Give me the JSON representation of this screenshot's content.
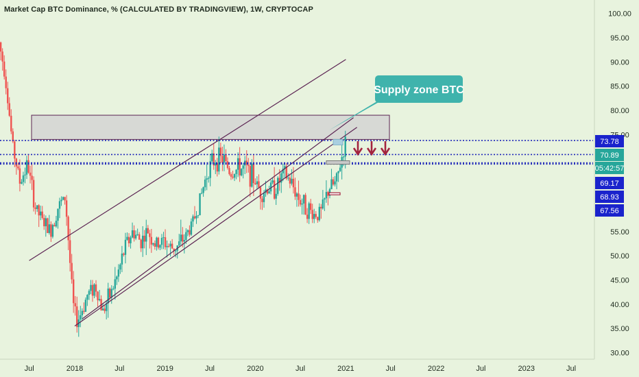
{
  "header": {
    "title": "Market Cap BTC Dominance, % (CALCULATED BY TRADINGVIEW), 1W, CRYPTOCAP"
  },
  "colors": {
    "background": "#e8f3de",
    "up_candle": "#26a69a",
    "down_candle": "#ef5350",
    "channel_line": "#5b2352",
    "dotted_level": "#1a23b8",
    "supply_zone_fill": "#d3d3d3",
    "callout_fill": "#3fb3ac",
    "arrow": "#a3243f",
    "label_teal": "#26a69a",
    "label_blue": "#1a23cc"
  },
  "chart_data": {
    "type": "candlestick",
    "title": "Market Cap BTC Dominance, % (CALCULATED BY TRADINGVIEW), 1W, CRYPTOCAP",
    "timeframe": "1W",
    "ylim": [
      30,
      100
    ],
    "y_ticks": [
      "100.00",
      "95.00",
      "90.00",
      "85.00",
      "80.00",
      "75.00",
      "55.00",
      "50.00",
      "45.00",
      "40.00",
      "35.00",
      "30.00"
    ],
    "x_ticks": [
      {
        "label": "Jul",
        "date": "2017-07-01"
      },
      {
        "label": "2018",
        "date": "2018-01-01"
      },
      {
        "label": "Jul",
        "date": "2018-07-01"
      },
      {
        "label": "2019",
        "date": "2019-01-01"
      },
      {
        "label": "Jul",
        "date": "2019-07-01"
      },
      {
        "label": "2020",
        "date": "2020-01-01"
      },
      {
        "label": "Jul",
        "date": "2020-07-01"
      },
      {
        "label": "2021",
        "date": "2021-01-01"
      },
      {
        "label": "Jul",
        "date": "2021-07-01"
      },
      {
        "label": "2022",
        "date": "2022-01-01"
      },
      {
        "label": "Jul",
        "date": "2022-07-01"
      },
      {
        "label": "2023",
        "date": "2023-01-01"
      },
      {
        "label": "Jul",
        "date": "2023-07-01"
      }
    ],
    "price_path": [
      [
        "2017-03-01",
        95.5
      ],
      [
        "2017-04-01",
        88
      ],
      [
        "2017-05-01",
        73
      ],
      [
        "2017-06-01",
        65
      ],
      [
        "2017-07-01",
        69
      ],
      [
        "2017-08-01",
        60
      ],
      [
        "2017-09-01",
        57
      ],
      [
        "2017-10-01",
        55
      ],
      [
        "2017-11-01",
        60
      ],
      [
        "2017-12-01",
        62
      ],
      [
        "2018-01-01",
        40
      ],
      [
        "2018-01-15",
        36.5
      ],
      [
        "2018-02-01",
        38
      ],
      [
        "2018-03-01",
        42
      ],
      [
        "2018-04-01",
        44
      ],
      [
        "2018-05-01",
        38.5
      ],
      [
        "2018-06-01",
        42
      ],
      [
        "2018-07-01",
        46
      ],
      [
        "2018-08-01",
        52
      ],
      [
        "2018-09-01",
        55
      ],
      [
        "2018-10-01",
        53
      ],
      [
        "2018-11-01",
        55
      ],
      [
        "2018-12-01",
        52
      ],
      [
        "2019-01-01",
        53
      ],
      [
        "2019-02-01",
        51.5
      ],
      [
        "2019-03-01",
        52
      ],
      [
        "2019-04-01",
        54
      ],
      [
        "2019-05-01",
        57
      ],
      [
        "2019-06-01",
        62
      ],
      [
        "2019-07-01",
        68
      ],
      [
        "2019-08-01",
        70
      ],
      [
        "2019-09-01",
        70
      ],
      [
        "2019-10-01",
        67
      ],
      [
        "2019-11-01",
        68
      ],
      [
        "2019-12-01",
        68
      ],
      [
        "2020-01-01",
        66
      ],
      [
        "2020-02-01",
        63
      ],
      [
        "2020-03-01",
        64
      ],
      [
        "2020-04-01",
        64
      ],
      [
        "2020-05-01",
        67
      ],
      [
        "2020-06-01",
        65
      ],
      [
        "2020-07-01",
        62
      ],
      [
        "2020-08-01",
        60
      ],
      [
        "2020-09-01",
        58.5
      ],
      [
        "2020-10-01",
        59
      ],
      [
        "2020-11-01",
        64
      ],
      [
        "2020-12-01",
        65
      ],
      [
        "2020-12-25",
        70.9
      ],
      [
        "2021-01-05",
        73
      ]
    ],
    "channel_lines": [
      {
        "from": [
          "2017-07-01",
          49
        ],
        "to": [
          "2021-01-01",
          90.5
        ]
      },
      {
        "from": [
          "2018-01-01",
          35.5
        ],
        "to": [
          "2021-02-15",
          76.5
        ]
      },
      {
        "from": [
          "2018-02-01",
          37
        ],
        "to": [
          "2021-02-01",
          78.5
        ]
      }
    ],
    "supply_zone": {
      "label": "Supply zone BTC",
      "x": [
        "2017-07-01",
        "2021-06-01"
      ],
      "y": [
        74,
        79
      ]
    },
    "horizontal_levels": [
      73.78,
      70.89,
      69.17,
      68.93
    ],
    "price_labels": [
      {
        "value": 73.78,
        "text": "73.78",
        "style": "blue"
      },
      {
        "value": 70.89,
        "text": "70.89",
        "style": "teal"
      },
      {
        "value": null,
        "text": "05:42:57",
        "style": "teal"
      },
      {
        "value": 69.17,
        "text": "69.17",
        "style": "blue"
      },
      {
        "value": 68.93,
        "text": "68.93",
        "style": "blue"
      },
      {
        "value": 67.56,
        "text": "67.56",
        "style": "blue"
      }
    ],
    "annotation": {
      "text": "Supply zone BTC"
    },
    "down_arrows": 3,
    "grid": false
  }
}
